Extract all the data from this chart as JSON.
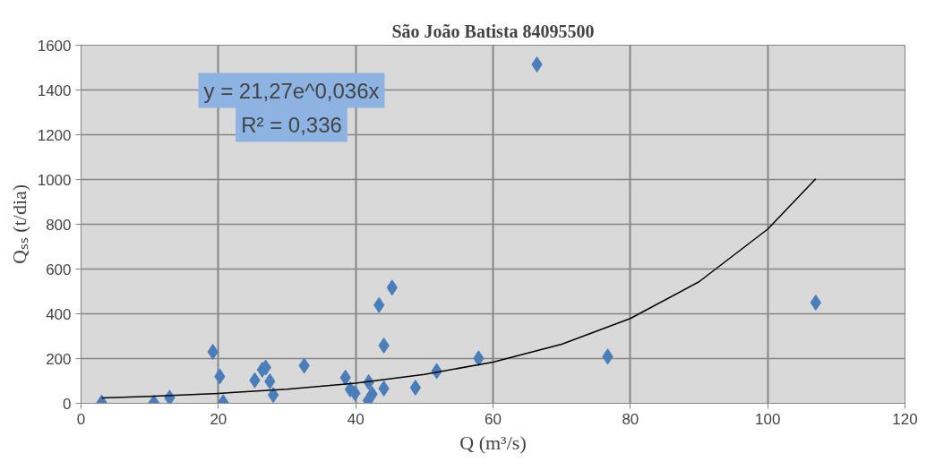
{
  "chart_data": {
    "type": "scatter",
    "title": "São João Batista 84095500",
    "xlabel": "Q (m³/s)",
    "ylabel": "Qₛₛ (t/dia)",
    "xlim": [
      0,
      120
    ],
    "xticks": [
      0,
      20,
      40,
      60,
      80,
      100,
      120
    ],
    "ylim": [
      0,
      1600
    ],
    "yticks": [
      0,
      200,
      400,
      600,
      800,
      1000,
      1200,
      1400,
      1600
    ],
    "grid": true,
    "marker": "diamond",
    "annotations": [
      "y = 21,27e^0,036x",
      "R² = 0,336"
    ],
    "series": [
      {
        "color": "#4a7ebb",
        "x": [
          3.0,
          10.6,
          12.9,
          19.2,
          20.2,
          20.7,
          25.3,
          26.4,
          26.9,
          27.5,
          28.0,
          32.5,
          38.5,
          39.2,
          39.9,
          41.8,
          41.9,
          42.4,
          43.4,
          44.1,
          44.1,
          45.3,
          48.7,
          51.8,
          57.9,
          66.4,
          76.7,
          107.0
        ],
        "values": [
          3,
          3,
          25,
          230,
          120,
          5,
          103,
          150,
          160,
          98,
          37,
          168,
          115,
          62,
          45,
          12,
          94,
          41,
          439,
          258,
          66,
          517,
          70,
          144,
          201,
          1514,
          209,
          450
        ]
      },
      {
        "type": "line",
        "marker": "none",
        "color": "#000000",
        "x": [
          3,
          10,
          20,
          30,
          40,
          50,
          60,
          70,
          80,
          90,
          100,
          107
        ],
        "values": [
          24,
          31,
          44,
          63,
          90,
          129,
          184,
          264,
          379,
          543,
          778,
          1003
        ]
      }
    ]
  }
}
